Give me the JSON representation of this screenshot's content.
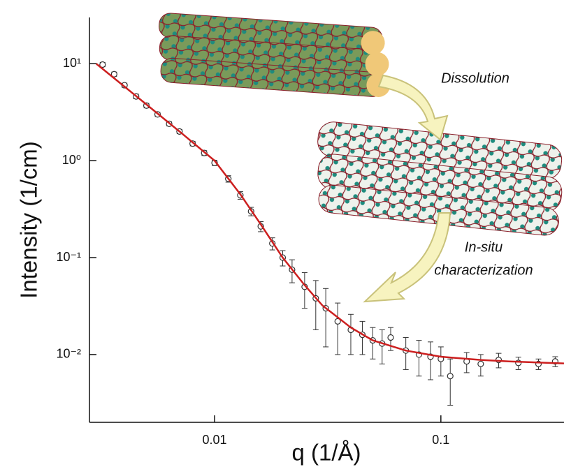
{
  "chart_data": {
    "type": "scatter",
    "xlabel": "q  (1/Å)",
    "ylabel": "Intensity  (1/cm)",
    "log_x": true,
    "log_y": true,
    "xlim": [
      0.0028,
      0.35
    ],
    "ylim": [
      0.002,
      30
    ],
    "xticks": [
      0.01,
      0.1
    ],
    "yticks": [
      {
        "value": 0.01,
        "label": "10⁻²"
      },
      {
        "value": 0.1,
        "label": "10⁻¹"
      },
      {
        "value": 1,
        "label": "10⁰"
      },
      {
        "value": 10,
        "label": "10¹"
      }
    ],
    "annotations": [
      "Dissolution",
      "In-situ",
      "characterization"
    ],
    "series": [
      {
        "type": "scatter",
        "color": "#333333",
        "x": [
          0.0032,
          0.0036,
          0.004,
          0.0045,
          0.005,
          0.0056,
          0.0063,
          0.007,
          0.008,
          0.009,
          0.01,
          0.0115,
          0.013,
          0.0145,
          0.016,
          0.018,
          0.02,
          0.022,
          0.025,
          0.028,
          0.031,
          0.035,
          0.04,
          0.045,
          0.05,
          0.055,
          0.06,
          0.07,
          0.08,
          0.09,
          0.1,
          0.11,
          0.13,
          0.15,
          0.18,
          0.22,
          0.27,
          0.32
        ],
        "values": [
          9.8,
          7.8,
          6.0,
          4.6,
          3.7,
          3.0,
          2.4,
          2.0,
          1.5,
          1.2,
          0.95,
          0.65,
          0.44,
          0.3,
          0.21,
          0.14,
          0.1,
          0.075,
          0.05,
          0.038,
          0.03,
          0.022,
          0.018,
          0.016,
          0.014,
          0.013,
          0.015,
          0.011,
          0.01,
          0.0095,
          0.009,
          0.006,
          0.0085,
          0.008,
          0.0088,
          0.0082,
          0.008,
          0.0085
        ],
        "errors": [
          0.5,
          0.4,
          0.3,
          0.25,
          0.2,
          0.15,
          0.12,
          0.1,
          0.08,
          0.07,
          0.06,
          0.05,
          0.04,
          0.03,
          0.025,
          0.02,
          0.018,
          0.02,
          0.02,
          0.02,
          0.018,
          0.012,
          0.008,
          0.006,
          0.005,
          0.005,
          0.004,
          0.004,
          0.004,
          0.004,
          0.003,
          0.003,
          0.002,
          0.002,
          0.0015,
          0.0012,
          0.001,
          0.001
        ]
      },
      {
        "type": "line",
        "color": "#cc1f1f",
        "x": [
          0.003,
          0.004,
          0.005,
          0.007,
          0.01,
          0.013,
          0.016,
          0.02,
          0.025,
          0.03,
          0.04,
          0.05,
          0.07,
          0.1,
          0.15,
          0.2,
          0.3,
          0.35
        ],
        "values": [
          10,
          5.8,
          3.8,
          2.0,
          1.0,
          0.45,
          0.22,
          0.1,
          0.052,
          0.032,
          0.019,
          0.014,
          0.011,
          0.0095,
          0.0088,
          0.0085,
          0.0082,
          0.0081
        ]
      }
    ]
  }
}
